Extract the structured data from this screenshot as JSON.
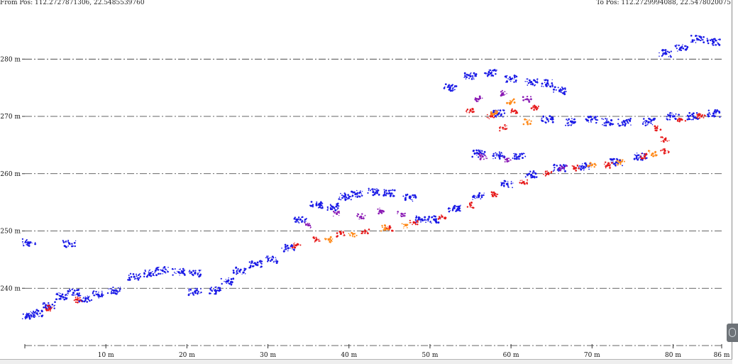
{
  "header": {
    "from_pos": "From Pos: 112.2727871306, 22.5485539760",
    "to_pos": "To Pos: 112.2729994088, 22.5478020075"
  },
  "chart_data": {
    "type": "scatter",
    "title": "",
    "xlabel": "",
    "ylabel": "",
    "xlim": [
      0,
      86
    ],
    "ylim": [
      230,
      284
    ],
    "x_ticks": [
      {
        "value": 0,
        "label": ""
      },
      {
        "value": 10,
        "label": "10 m"
      },
      {
        "value": 20,
        "label": "20 m"
      },
      {
        "value": 30,
        "label": "30 m"
      },
      {
        "value": 40,
        "label": "40 m"
      },
      {
        "value": 50,
        "label": "50 m"
      },
      {
        "value": 60,
        "label": "60 m"
      },
      {
        "value": 70,
        "label": "70 m"
      },
      {
        "value": 80,
        "label": "80 m"
      },
      {
        "value": 86,
        "label": "86 m"
      }
    ],
    "y_ticks": [
      {
        "value": 240,
        "label": "240 m"
      },
      {
        "value": 250,
        "label": "250 m"
      },
      {
        "value": 260,
        "label": "260 m"
      },
      {
        "value": 270,
        "label": "270 m"
      },
      {
        "value": 280,
        "label": "280 m"
      }
    ],
    "grid": "horizontal dash-dot at each y tick and at the baseline",
    "colors": {
      "blue": "#1a1ae6",
      "red": "#e61a1a",
      "orange": "#ff8a1a",
      "purple": "#8a1ab4",
      "grid": "#333333"
    },
    "series": [
      {
        "color": "blue",
        "points": [
          {
            "x": 0.5,
            "y": 235.2
          },
          {
            "x": 1.5,
            "y": 235.6
          },
          {
            "x": 3.0,
            "y": 237.0
          },
          {
            "x": 4.5,
            "y": 238.6
          },
          {
            "x": 6.0,
            "y": 239.2
          },
          {
            "x": 7.5,
            "y": 238.2
          },
          {
            "x": 9.0,
            "y": 238.9
          },
          {
            "x": 11.0,
            "y": 239.6
          },
          {
            "x": 13.5,
            "y": 242.0
          },
          {
            "x": 15.5,
            "y": 242.6
          },
          {
            "x": 17.0,
            "y": 243.1
          },
          {
            "x": 19.0,
            "y": 242.8
          },
          {
            "x": 21.0,
            "y": 242.6
          },
          {
            "x": 21.0,
            "y": 239.4
          },
          {
            "x": 23.5,
            "y": 239.6
          },
          {
            "x": 25.0,
            "y": 241.2
          },
          {
            "x": 26.5,
            "y": 243.0
          },
          {
            "x": 28.5,
            "y": 244.2
          },
          {
            "x": 30.5,
            "y": 245.0
          },
          {
            "x": 32.5,
            "y": 247.0
          },
          {
            "x": 34.0,
            "y": 252.0
          },
          {
            "x": 36.0,
            "y": 254.5
          },
          {
            "x": 38.0,
            "y": 254.2
          },
          {
            "x": 39.5,
            "y": 256.0
          },
          {
            "x": 41.0,
            "y": 256.5
          },
          {
            "x": 43.0,
            "y": 256.8
          },
          {
            "x": 45.0,
            "y": 256.6
          },
          {
            "x": 47.5,
            "y": 255.8
          },
          {
            "x": 49.0,
            "y": 252.0
          },
          {
            "x": 50.5,
            "y": 252.0
          },
          {
            "x": 53.0,
            "y": 254.0
          },
          {
            "x": 56.0,
            "y": 256.0
          },
          {
            "x": 59.5,
            "y": 258.2
          },
          {
            "x": 62.5,
            "y": 259.8
          },
          {
            "x": 66.0,
            "y": 261.0
          },
          {
            "x": 69.0,
            "y": 261.2
          },
          {
            "x": 73.0,
            "y": 262.0
          },
          {
            "x": 76.0,
            "y": 263.0
          },
          {
            "x": 52.5,
            "y": 275.0
          },
          {
            "x": 55.0,
            "y": 277.0
          },
          {
            "x": 57.5,
            "y": 277.5
          },
          {
            "x": 60.0,
            "y": 276.5
          },
          {
            "x": 62.5,
            "y": 276.0
          },
          {
            "x": 64.5,
            "y": 275.8
          },
          {
            "x": 66.0,
            "y": 274.5
          },
          {
            "x": 58.5,
            "y": 270.5
          },
          {
            "x": 64.5,
            "y": 269.5
          },
          {
            "x": 67.5,
            "y": 269.0
          },
          {
            "x": 70.0,
            "y": 269.5
          },
          {
            "x": 72.0,
            "y": 269.0
          },
          {
            "x": 74.0,
            "y": 269.0
          },
          {
            "x": 77.0,
            "y": 269.0
          },
          {
            "x": 80.0,
            "y": 270.0
          },
          {
            "x": 82.5,
            "y": 270.0
          },
          {
            "x": 85.0,
            "y": 270.5
          },
          {
            "x": 79.0,
            "y": 281.0
          },
          {
            "x": 81.0,
            "y": 282.0
          },
          {
            "x": 83.0,
            "y": 283.5
          },
          {
            "x": 85.0,
            "y": 283.0
          },
          {
            "x": 56.0,
            "y": 263.5
          },
          {
            "x": 58.5,
            "y": 263.2
          },
          {
            "x": 61.0,
            "y": 263.0
          },
          {
            "x": 0.5,
            "y": 248.0
          },
          {
            "x": 5.5,
            "y": 247.8
          }
        ]
      },
      {
        "color": "red",
        "points": [
          {
            "x": 3.0,
            "y": 236.5
          },
          {
            "x": 6.5,
            "y": 238.0
          },
          {
            "x": 33.5,
            "y": 247.5
          },
          {
            "x": 36.0,
            "y": 248.5
          },
          {
            "x": 39.0,
            "y": 249.5
          },
          {
            "x": 42.0,
            "y": 250.0
          },
          {
            "x": 45.0,
            "y": 250.5
          },
          {
            "x": 48.0,
            "y": 251.5
          },
          {
            "x": 51.5,
            "y": 252.5
          },
          {
            "x": 55.0,
            "y": 254.5
          },
          {
            "x": 58.0,
            "y": 256.5
          },
          {
            "x": 61.5,
            "y": 258.5
          },
          {
            "x": 64.5,
            "y": 260.0
          },
          {
            "x": 68.0,
            "y": 261.0
          },
          {
            "x": 72.0,
            "y": 261.5
          },
          {
            "x": 76.5,
            "y": 263.0
          },
          {
            "x": 79.0,
            "y": 264.0
          },
          {
            "x": 55.0,
            "y": 271.0
          },
          {
            "x": 57.5,
            "y": 270.0
          },
          {
            "x": 59.0,
            "y": 268.0
          },
          {
            "x": 60.5,
            "y": 271.0
          },
          {
            "x": 63.0,
            "y": 271.5
          },
          {
            "x": 79.0,
            "y": 266.0
          },
          {
            "x": 81.0,
            "y": 269.5
          },
          {
            "x": 83.5,
            "y": 270.0
          },
          {
            "x": 78.0,
            "y": 268.0
          }
        ]
      },
      {
        "color": "orange",
        "points": [
          {
            "x": 37.5,
            "y": 248.5
          },
          {
            "x": 40.5,
            "y": 249.5
          },
          {
            "x": 44.5,
            "y": 250.5
          },
          {
            "x": 47.0,
            "y": 251.0
          },
          {
            "x": 58.0,
            "y": 270.5
          },
          {
            "x": 60.0,
            "y": 272.5
          },
          {
            "x": 62.0,
            "y": 269.0
          },
          {
            "x": 70.0,
            "y": 261.5
          },
          {
            "x": 73.5,
            "y": 262.0
          },
          {
            "x": 77.5,
            "y": 263.5
          }
        ]
      },
      {
        "color": "purple",
        "points": [
          {
            "x": 35.0,
            "y": 251.0
          },
          {
            "x": 38.5,
            "y": 253.0
          },
          {
            "x": 41.5,
            "y": 252.5
          },
          {
            "x": 44.0,
            "y": 253.5
          },
          {
            "x": 46.5,
            "y": 253.0
          },
          {
            "x": 56.0,
            "y": 273.0
          },
          {
            "x": 59.0,
            "y": 274.0
          },
          {
            "x": 62.0,
            "y": 273.0
          },
          {
            "x": 56.5,
            "y": 263.0
          },
          {
            "x": 59.5,
            "y": 262.5
          },
          {
            "x": 66.5,
            "y": 261.0
          }
        ]
      }
    ]
  }
}
